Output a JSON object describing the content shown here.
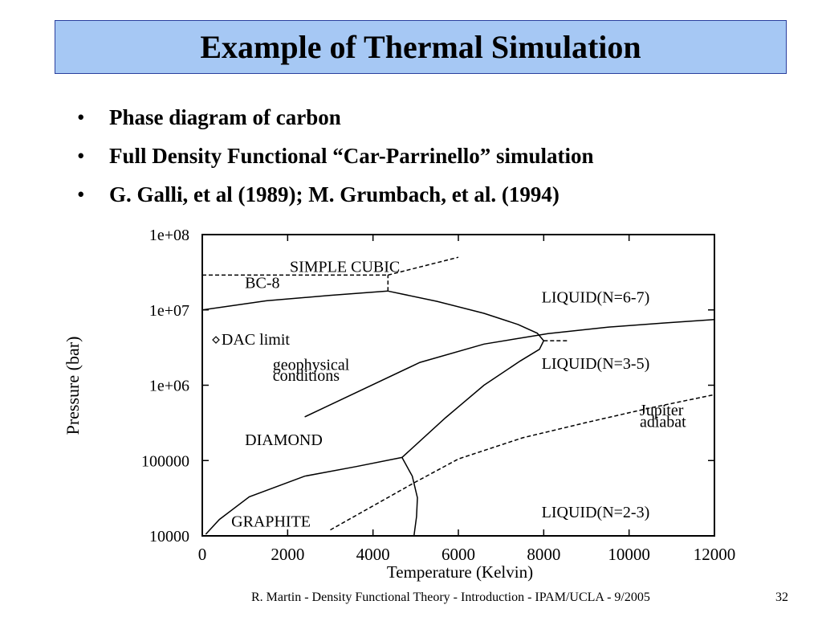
{
  "slide": {
    "title": "Example of Thermal Simulation",
    "bullets": [
      "Phase diagram of carbon",
      "Full Density Functional “Car-Parrinello” simulation",
      "G. Galli, et al (1989); M. Grumbach, et al.  (1994)"
    ],
    "footer": "R. Martin - Density Functional Theory - Introduction - IPAM/UCLA - 9/2005",
    "page_number": "32",
    "colors": {
      "title_fill": "#a6c8f4",
      "title_border": "#2a3f9e"
    }
  },
  "chart_data": {
    "type": "line",
    "xlabel": "Temperature (Kelvin)",
    "ylabel": "Pressure (bar)",
    "xlim": [
      0,
      12000
    ],
    "ylim": [
      10000,
      100000000
    ],
    "y_scale": "log",
    "x_ticks": [
      0,
      2000,
      4000,
      6000,
      8000,
      10000,
      12000
    ],
    "x_tick_labels": [
      "0",
      "2000",
      "4000",
      "6000",
      "8000",
      "10000",
      "12000"
    ],
    "y_ticks": [
      10000,
      100000,
      1000000,
      10000000,
      100000000
    ],
    "y_tick_labels": [
      "10000",
      "100000",
      "1e+06",
      "1e+07",
      "1e+08"
    ],
    "region_labels": [
      {
        "text": "SIMPLE CUBIC",
        "x": 2050,
        "y": 32000000
      },
      {
        "text": "BC-8",
        "x": 1000,
        "y": 19500000
      },
      {
        "text": "LIQUID(N=6-7)",
        "x": 7950,
        "y": 12500000
      },
      {
        "text": "DAC limit",
        "x": 450,
        "y": 3450000
      },
      {
        "text": "geophysical",
        "x": 1650,
        "y": 1600000
      },
      {
        "text": "conditions",
        "x": 1650,
        "y": 1150000
      },
      {
        "text": "LIQUID(N=3-5)",
        "x": 7950,
        "y": 1650000
      },
      {
        "text": "Jupiter",
        "x": 10250,
        "y": 400000
      },
      {
        "text": "adiabat",
        "x": 10250,
        "y": 280000
      },
      {
        "text": "DIAMOND",
        "x": 1000,
        "y": 160000
      },
      {
        "text": "LIQUID(N=2-3)",
        "x": 7950,
        "y": 17500
      },
      {
        "text": "GRAPHITE",
        "x": 680,
        "y": 13300
      }
    ],
    "markers": [
      {
        "name": "DAC limit",
        "x": 320,
        "y": 4000000
      }
    ],
    "series": [
      {
        "style": "solid",
        "x": [
          0,
          1500,
          3000,
          4350
        ],
        "y": [
          10000000,
          13200000,
          15600000,
          17800000
        ]
      },
      {
        "style": "solid",
        "x": [
          4350,
          5500,
          6600,
          7400,
          7850,
          8000,
          7900,
          7450,
          6600,
          5700,
          4680
        ],
        "y": [
          17800000,
          13000000,
          9000000,
          6400000,
          4900000,
          3900000,
          3000000,
          2100000,
          1000000,
          370000,
          110000
        ]
      },
      {
        "style": "solid",
        "x": [
          80,
          400,
          1100,
          2400,
          3600,
          4680
        ],
        "y": [
          10500,
          16500,
          33000,
          62000,
          83000,
          110000
        ]
      },
      {
        "style": "solid",
        "x": [
          4680,
          4920,
          5040,
          5020,
          4960
        ],
        "y": [
          110000,
          62000,
          32000,
          18000,
          10000
        ]
      },
      {
        "style": "solid",
        "x": [
          2400,
          5100,
          6600,
          8100,
          9500,
          10800,
          12000
        ],
        "y": [
          380000,
          2010000,
          3520000,
          4850000,
          5900000,
          6700000,
          7450000
        ]
      },
      {
        "style": "dashed",
        "x": [
          0,
          4350
        ],
        "y": [
          29000000,
          29000000
        ]
      },
      {
        "style": "dashed",
        "x": [
          4350,
          4350
        ],
        "y": [
          17800000,
          29000000
        ]
      },
      {
        "style": "dashed",
        "x": [
          4350,
          6000
        ],
        "y": [
          29000000,
          50000000
        ]
      },
      {
        "style": "dashed",
        "x": [
          8000,
          8600
        ],
        "y": [
          3900000,
          3900000
        ]
      },
      {
        "style": "dashed",
        "x": [
          3000,
          4000,
          5000,
          6000,
          7500,
          9000,
          10500,
          12000
        ],
        "y": [
          12000,
          25000,
          52000,
          105000,
          200000,
          320000,
          500000,
          750000
        ]
      }
    ]
  }
}
